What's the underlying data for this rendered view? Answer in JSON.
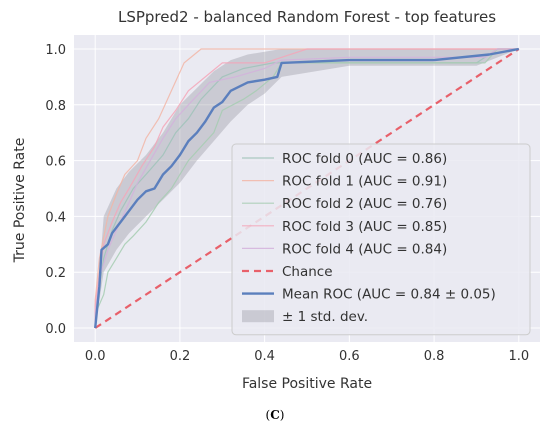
{
  "caption": {
    "open": "(",
    "letter": "C",
    "close": ")"
  },
  "chart_data": {
    "type": "line",
    "title": "LSPpred2 - balanced Random Forest - top features",
    "xlabel": "False Positive Rate",
    "ylabel": "True Positive Rate",
    "xlim": [
      -0.05,
      1.05
    ],
    "ylim": [
      -0.05,
      1.05
    ],
    "xticks": [
      "0.0",
      "0.2",
      "0.4",
      "0.6",
      "0.8",
      "1.0"
    ],
    "yticks": [
      "0.0",
      "0.2",
      "0.4",
      "0.6",
      "0.8",
      "1.0"
    ],
    "grid": true,
    "legend_position": "lower-right",
    "series": [
      {
        "name": "ROC fold 0 (AUC = 0.86)",
        "color": "#9fc3b8",
        "style": "thin",
        "points": [
          [
            0,
            0
          ],
          [
            0,
            0.05
          ],
          [
            0.01,
            0.15
          ],
          [
            0.02,
            0.25
          ],
          [
            0.04,
            0.35
          ],
          [
            0.06,
            0.42
          ],
          [
            0.09,
            0.5
          ],
          [
            0.12,
            0.55
          ],
          [
            0.16,
            0.62
          ],
          [
            0.19,
            0.7
          ],
          [
            0.22,
            0.75
          ],
          [
            0.25,
            0.82
          ],
          [
            0.3,
            0.9
          ],
          [
            0.35,
            0.93
          ],
          [
            0.42,
            0.95
          ],
          [
            0.5,
            0.95
          ],
          [
            0.7,
            0.95
          ],
          [
            0.9,
            0.95
          ],
          [
            0.95,
            1.0
          ],
          [
            1,
            1
          ]
        ]
      },
      {
        "name": "ROC fold 1 (AUC = 0.91)",
        "color": "#f2b6a7",
        "style": "thin",
        "points": [
          [
            0,
            0
          ],
          [
            0,
            0.1
          ],
          [
            0.01,
            0.25
          ],
          [
            0.03,
            0.4
          ],
          [
            0.05,
            0.48
          ],
          [
            0.07,
            0.55
          ],
          [
            0.1,
            0.6
          ],
          [
            0.12,
            0.68
          ],
          [
            0.15,
            0.75
          ],
          [
            0.18,
            0.85
          ],
          [
            0.21,
            0.95
          ],
          [
            0.25,
            1.0
          ],
          [
            1,
            1
          ]
        ]
      },
      {
        "name": "ROC fold 2 (AUC = 0.76)",
        "color": "#a6cdb1",
        "style": "thin",
        "points": [
          [
            0,
            0
          ],
          [
            0,
            0.05
          ],
          [
            0.02,
            0.12
          ],
          [
            0.03,
            0.2
          ],
          [
            0.05,
            0.25
          ],
          [
            0.07,
            0.3
          ],
          [
            0.09,
            0.33
          ],
          [
            0.12,
            0.38
          ],
          [
            0.15,
            0.45
          ],
          [
            0.18,
            0.5
          ],
          [
            0.2,
            0.55
          ],
          [
            0.22,
            0.6
          ],
          [
            0.25,
            0.65
          ],
          [
            0.28,
            0.7
          ],
          [
            0.3,
            0.78
          ],
          [
            0.35,
            0.82
          ],
          [
            0.38,
            0.85
          ],
          [
            0.42,
            0.9
          ],
          [
            0.44,
            0.95
          ],
          [
            0.6,
            0.95
          ],
          [
            0.8,
            0.95
          ],
          [
            0.92,
            0.95
          ],
          [
            0.95,
            1.0
          ],
          [
            1,
            1
          ]
        ]
      },
      {
        "name": "ROC fold 3 (AUC = 0.85)",
        "color": "#f4a6b8",
        "style": "thin",
        "points": [
          [
            0,
            0
          ],
          [
            0,
            0.08
          ],
          [
            0.01,
            0.2
          ],
          [
            0.02,
            0.3
          ],
          [
            0.04,
            0.38
          ],
          [
            0.06,
            0.45
          ],
          [
            0.08,
            0.5
          ],
          [
            0.11,
            0.58
          ],
          [
            0.14,
            0.65
          ],
          [
            0.16,
            0.72
          ],
          [
            0.19,
            0.78
          ],
          [
            0.22,
            0.85
          ],
          [
            0.26,
            0.9
          ],
          [
            0.3,
            0.95
          ],
          [
            0.4,
            0.95
          ],
          [
            0.5,
            1.0
          ],
          [
            1,
            1
          ]
        ]
      },
      {
        "name": "ROC fold 4 (AUC = 0.84)",
        "color": "#d3b2dc",
        "style": "thin",
        "points": [
          [
            0,
            0
          ],
          [
            0,
            0.05
          ],
          [
            0.01,
            0.18
          ],
          [
            0.03,
            0.28
          ],
          [
            0.05,
            0.35
          ],
          [
            0.08,
            0.45
          ],
          [
            0.1,
            0.52
          ],
          [
            0.13,
            0.6
          ],
          [
            0.16,
            0.68
          ],
          [
            0.19,
            0.75
          ],
          [
            0.22,
            0.8
          ],
          [
            0.27,
            0.88
          ],
          [
            0.33,
            0.9
          ],
          [
            0.4,
            0.93
          ],
          [
            0.44,
            0.96
          ],
          [
            0.6,
            0.97
          ],
          [
            0.8,
            0.97
          ],
          [
            0.92,
            0.97
          ],
          [
            0.95,
            1.0
          ],
          [
            1,
            1
          ]
        ]
      },
      {
        "name": "Chance",
        "color": "#e8606a",
        "style": "dashed",
        "points": [
          [
            0,
            0
          ],
          [
            1,
            1
          ]
        ]
      },
      {
        "name": "Mean ROC (AUC = 0.84 ± 0.05)",
        "color": "#5b7fbd",
        "style": "bold",
        "points": [
          [
            0,
            0
          ],
          [
            0.01,
            0.15
          ],
          [
            0.015,
            0.28
          ],
          [
            0.03,
            0.3
          ],
          [
            0.04,
            0.34
          ],
          [
            0.06,
            0.38
          ],
          [
            0.08,
            0.42
          ],
          [
            0.1,
            0.46
          ],
          [
            0.12,
            0.49
          ],
          [
            0.14,
            0.5
          ],
          [
            0.16,
            0.55
          ],
          [
            0.18,
            0.58
          ],
          [
            0.2,
            0.62
          ],
          [
            0.22,
            0.67
          ],
          [
            0.24,
            0.7
          ],
          [
            0.26,
            0.74
          ],
          [
            0.28,
            0.79
          ],
          [
            0.3,
            0.81
          ],
          [
            0.32,
            0.85
          ],
          [
            0.36,
            0.88
          ],
          [
            0.4,
            0.89
          ],
          [
            0.43,
            0.9
          ],
          [
            0.44,
            0.95
          ],
          [
            0.6,
            0.96
          ],
          [
            0.8,
            0.96
          ],
          [
            0.93,
            0.98
          ],
          [
            1,
            1
          ]
        ]
      }
    ],
    "std_band": {
      "name": "± 1 std. dev.",
      "color": "#9a9aa6",
      "x": [
        0,
        0.02,
        0.05,
        0.08,
        0.12,
        0.16,
        0.2,
        0.24,
        0.28,
        0.32,
        0.36,
        0.4,
        0.44,
        0.6,
        0.8,
        0.9,
        1.0
      ],
      "lower": [
        0,
        0.2,
        0.28,
        0.34,
        0.4,
        0.46,
        0.52,
        0.6,
        0.67,
        0.74,
        0.8,
        0.84,
        0.9,
        0.94,
        0.94,
        0.94,
        1.0
      ],
      "upper": [
        0,
        0.4,
        0.5,
        0.56,
        0.62,
        0.7,
        0.8,
        0.86,
        0.92,
        0.96,
        0.98,
        0.99,
        1.0,
        1.0,
        1.0,
        1.0,
        1.0
      ]
    }
  }
}
